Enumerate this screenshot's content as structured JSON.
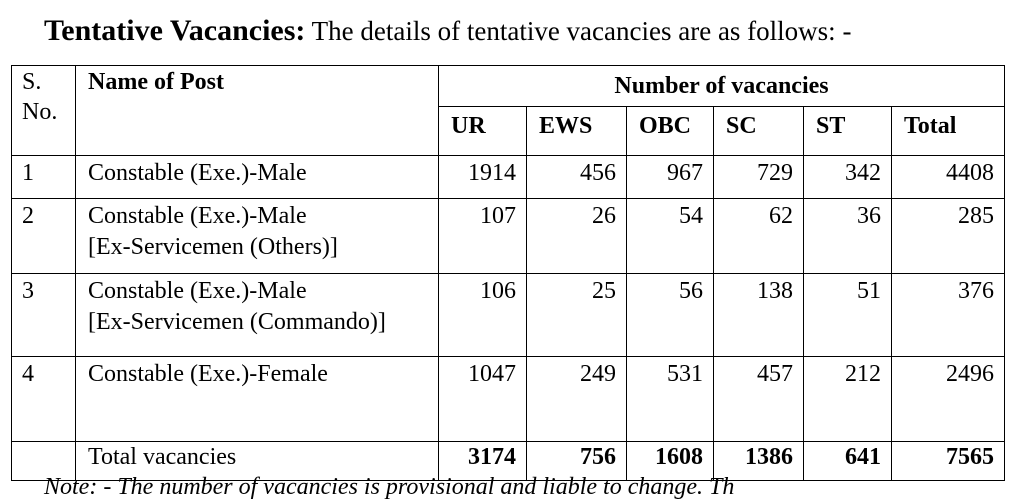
{
  "heading": {
    "bold": "Tentative Vacancies:",
    "rest": " The details of tentative vacancies are as follows: -"
  },
  "table": {
    "col_sno": "S. No.",
    "col_name": "Name of Post",
    "col_group": "Number of vacancies",
    "subcols": [
      "UR",
      "EWS",
      "OBC",
      "SC",
      "ST",
      "Total"
    ],
    "rows": [
      {
        "sno": "1",
        "name_line1": "Constable (Exe.)-Male",
        "name_line2": "",
        "values": [
          "1914",
          "456",
          "967",
          "729",
          "342",
          "4408"
        ]
      },
      {
        "sno": "2",
        "name_line1": "Constable (Exe.)-Male",
        "name_line2": "[Ex-Servicemen (Others)]",
        "values": [
          "107",
          "26",
          "54",
          "62",
          "36",
          "285"
        ]
      },
      {
        "sno": "3",
        "name_line1": "Constable (Exe.)-Male",
        "name_line2": "[Ex-Servicemen (Commando)]",
        "values": [
          "106",
          "25",
          "56",
          "138",
          "51",
          "376"
        ]
      },
      {
        "sno": "4",
        "name_line1": "Constable (Exe.)-Female",
        "name_line2": "",
        "values": [
          "1047",
          "249",
          "531",
          "457",
          "212",
          "2496"
        ]
      }
    ],
    "total": {
      "label": "Total vacancies",
      "values": [
        "3174",
        "756",
        "1608",
        "1386",
        "641",
        "7565"
      ]
    }
  },
  "note": "Note: - The number of vacancies is provisional and liable to change. Th"
}
